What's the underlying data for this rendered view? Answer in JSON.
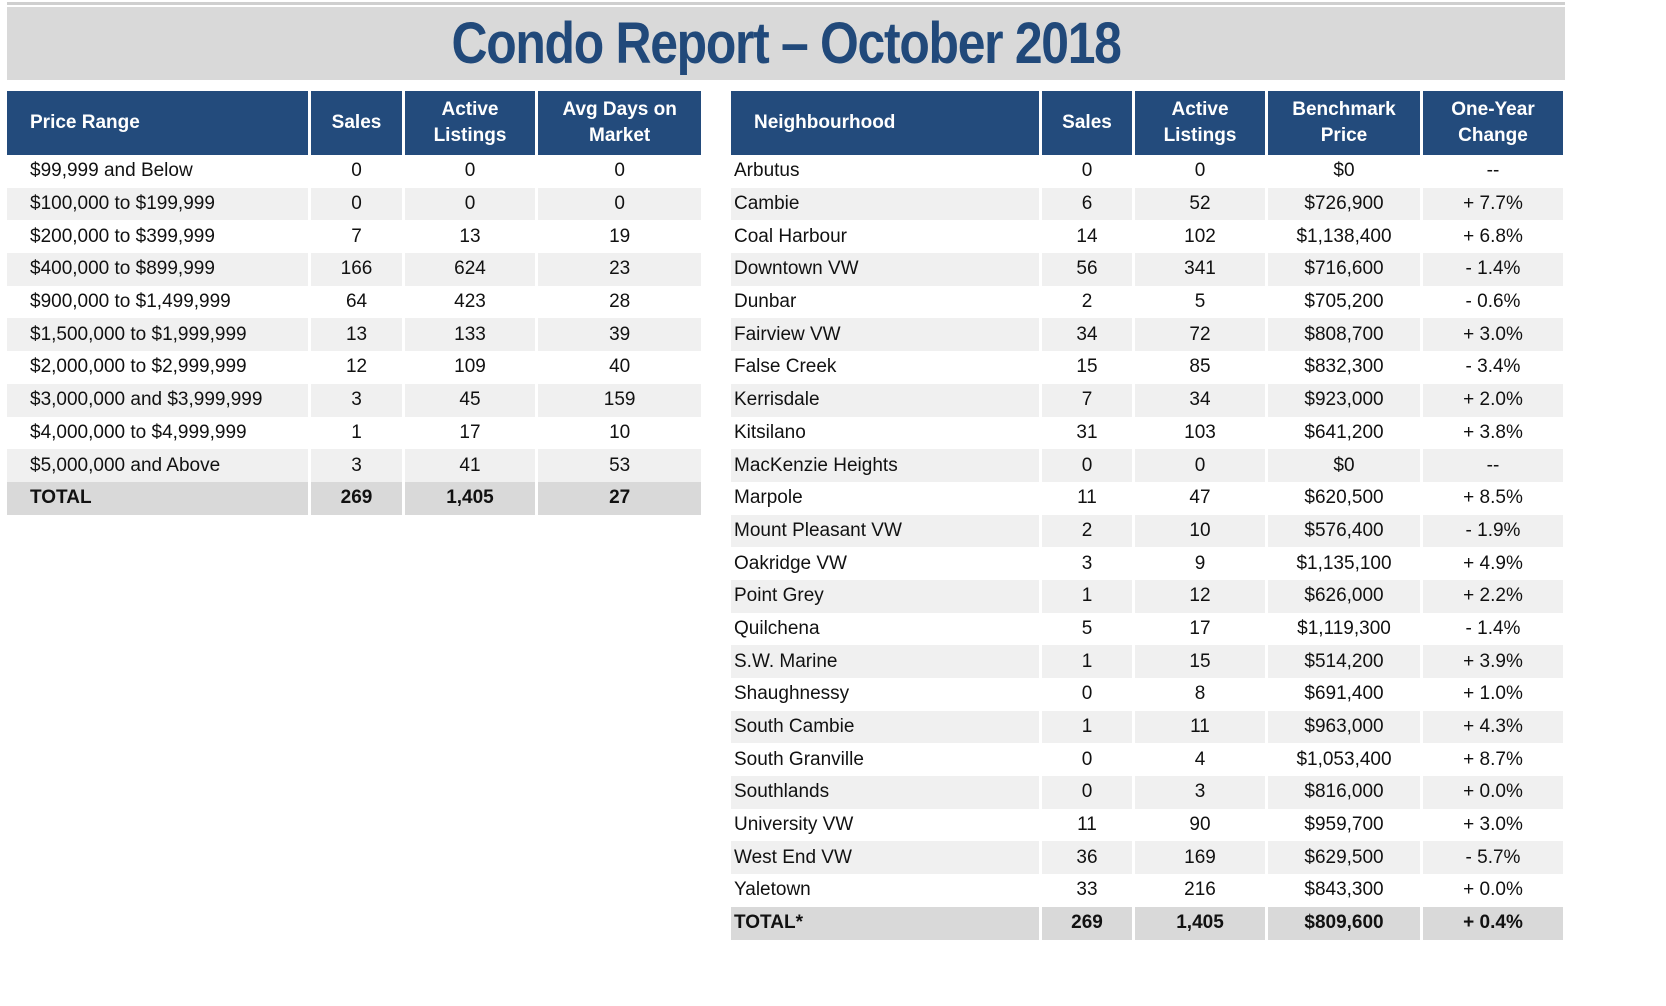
{
  "title": "Condo Report – October 2018",
  "colors": {
    "header_bg": "#234b7c",
    "title_text": "#21497a",
    "title_bg": "#d9d9d9",
    "stripe": "#f0f0f0"
  },
  "price_table": {
    "headers": [
      "Price Range",
      "Sales",
      "Active Listings",
      "Avg Days on Market"
    ],
    "rows": [
      [
        "$99,999 and Below",
        "0",
        "0",
        "0"
      ],
      [
        "$100,000 to $199,999",
        "0",
        "0",
        "0"
      ],
      [
        "$200,000 to $399,999",
        "7",
        "13",
        "19"
      ],
      [
        "$400,000 to $899,999",
        "166",
        "624",
        "23"
      ],
      [
        "$900,000 to $1,499,999",
        "64",
        "423",
        "28"
      ],
      [
        "$1,500,000 to $1,999,999",
        "13",
        "133",
        "39"
      ],
      [
        "$2,000,000 to $2,999,999",
        "12",
        "109",
        "40"
      ],
      [
        "$3,000,000 and $3,999,999",
        "3",
        "45",
        "159"
      ],
      [
        "$4,000,000 to $4,999,999",
        "1",
        "17",
        "10"
      ],
      [
        "$5,000,000 and Above",
        "3",
        "41",
        "53"
      ]
    ],
    "total": [
      "TOTAL",
      "269",
      "1,405",
      "27"
    ]
  },
  "neighbourhood_table": {
    "headers": [
      "Neighbourhood",
      "Sales",
      "Active Listings",
      "Benchmark Price",
      "One-Year Change"
    ],
    "rows": [
      [
        "Arbutus",
        "0",
        "0",
        "$0",
        "--"
      ],
      [
        "Cambie",
        "6",
        "52",
        "$726,900",
        "+ 7.7%"
      ],
      [
        "Coal Harbour",
        "14",
        "102",
        "$1,138,400",
        "+ 6.8%"
      ],
      [
        "Downtown VW",
        "56",
        "341",
        "$716,600",
        "- 1.4%"
      ],
      [
        "Dunbar",
        "2",
        "5",
        "$705,200",
        "- 0.6%"
      ],
      [
        "Fairview VW",
        "34",
        "72",
        "$808,700",
        "+ 3.0%"
      ],
      [
        "False Creek",
        "15",
        "85",
        "$832,300",
        "- 3.4%"
      ],
      [
        "Kerrisdale",
        "7",
        "34",
        "$923,000",
        "+ 2.0%"
      ],
      [
        "Kitsilano",
        "31",
        "103",
        "$641,200",
        "+ 3.8%"
      ],
      [
        "MacKenzie Heights",
        "0",
        "0",
        "$0",
        "--"
      ],
      [
        "Marpole",
        "11",
        "47",
        "$620,500",
        "+ 8.5%"
      ],
      [
        "Mount Pleasant VW",
        "2",
        "10",
        "$576,400",
        "- 1.9%"
      ],
      [
        "Oakridge VW",
        "3",
        "9",
        "$1,135,100",
        "+ 4.9%"
      ],
      [
        "Point Grey",
        "1",
        "12",
        "$626,000",
        "+ 2.2%"
      ],
      [
        "Quilchena",
        "5",
        "17",
        "$1,119,300",
        "- 1.4%"
      ],
      [
        "S.W. Marine",
        "1",
        "15",
        "$514,200",
        "+ 3.9%"
      ],
      [
        "Shaughnessy",
        "0",
        "8",
        "$691,400",
        "+ 1.0%"
      ],
      [
        "South Cambie",
        "1",
        "11",
        "$963,000",
        "+ 4.3%"
      ],
      [
        "South Granville",
        "0",
        "4",
        "$1,053,400",
        "+ 8.7%"
      ],
      [
        "Southlands",
        "0",
        "3",
        "$816,000",
        "+ 0.0%"
      ],
      [
        "University VW",
        "11",
        "90",
        "$959,700",
        "+ 3.0%"
      ],
      [
        "West End VW",
        "36",
        "169",
        "$629,500",
        "- 5.7%"
      ],
      [
        "Yaletown",
        "33",
        "216",
        "$843,300",
        "+ 0.0%"
      ]
    ],
    "total": [
      "TOTAL*",
      "269",
      "1,405",
      "$809,600",
      "+ 0.4%"
    ]
  }
}
